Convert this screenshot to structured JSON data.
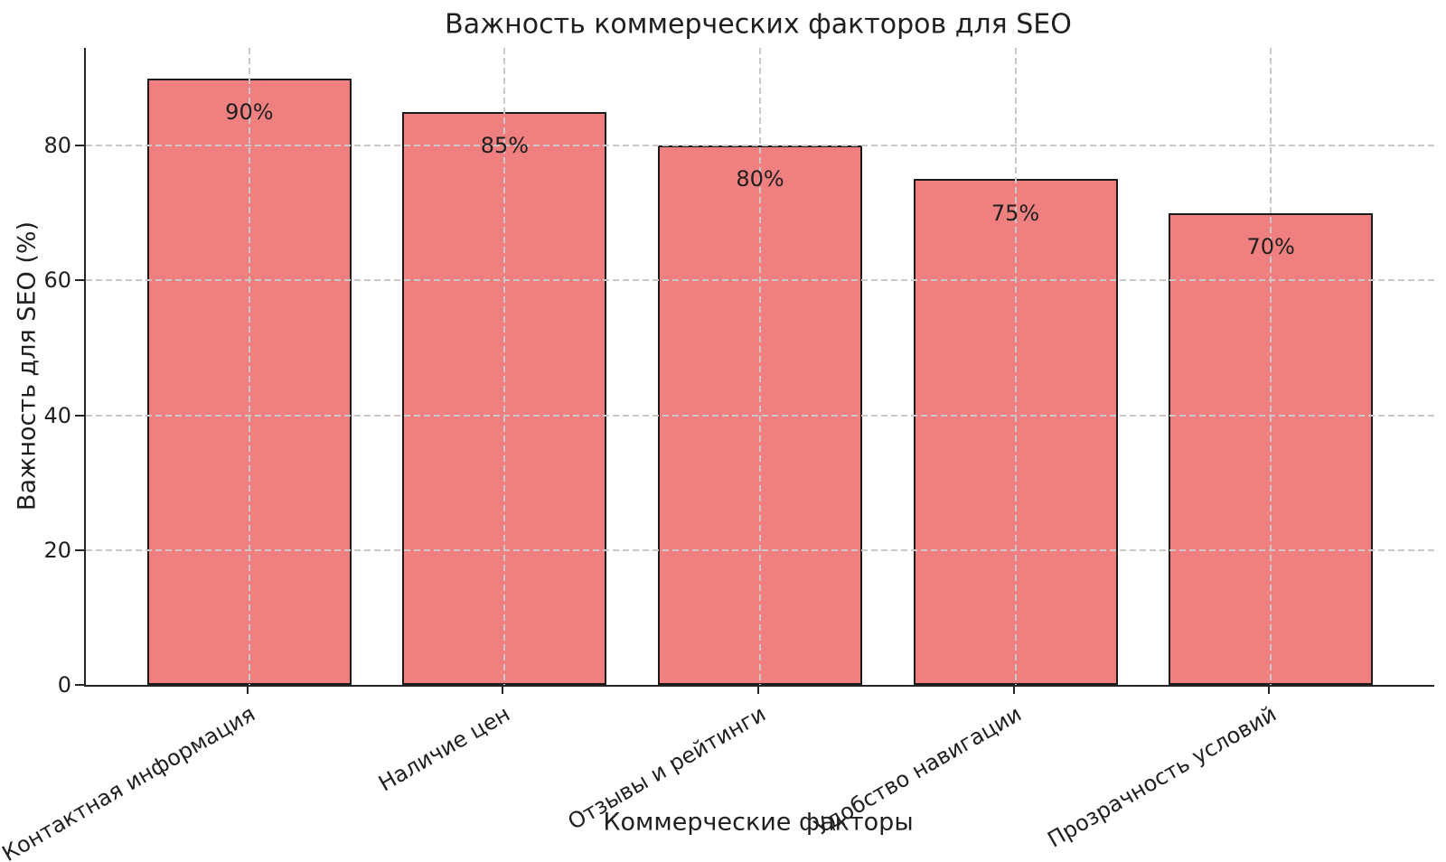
{
  "chart_data": {
    "type": "bar",
    "title": "Важность коммерческих факторов для SEO",
    "xlabel": "Коммерческие факторы",
    "ylabel": "Важность для SEO (%)",
    "categories": [
      "Контактная информация",
      "Наличие цен",
      "Отзывы и рейтинги",
      "Удобство навигации",
      "Прозрачность условий"
    ],
    "values": [
      90,
      85,
      80,
      75,
      70
    ],
    "bar_labels": [
      "90%",
      "85%",
      "80%",
      "75%",
      "70%"
    ],
    "yticks": [
      0,
      20,
      40,
      60,
      80
    ],
    "ylim": [
      0,
      94.5
    ],
    "grid": "dashed gridlines on both axes, drawn over bars",
    "legend": "none",
    "x_tick_rotation_deg": 30,
    "colors": {
      "bar_fill": "#F08080",
      "bar_edge": "#1a1a1a",
      "grid": "#c9c9c9",
      "text": "#1f1f1f",
      "spine": "#262626",
      "background": "#ffffff"
    }
  }
}
